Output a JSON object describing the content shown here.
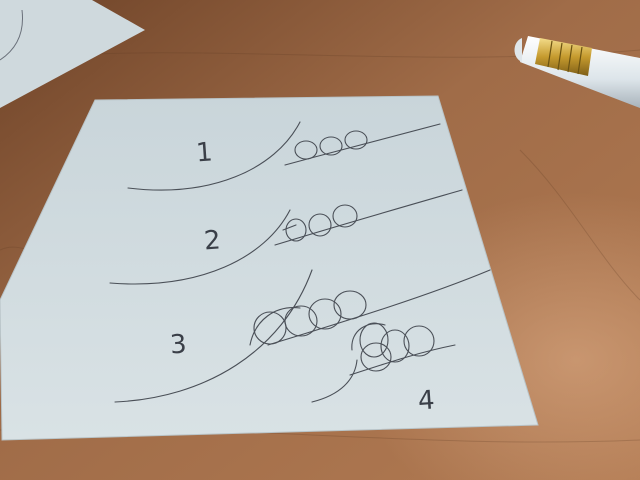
{
  "sketch": {
    "labels": [
      "1",
      "2",
      "3",
      "4"
    ]
  },
  "colors": {
    "desk": "#8a5a3a",
    "paper": "#d3dde1",
    "pencil_line": "#4a4f57",
    "pencil_body": "#e8eef2",
    "ferrule": "#c9a23a"
  }
}
